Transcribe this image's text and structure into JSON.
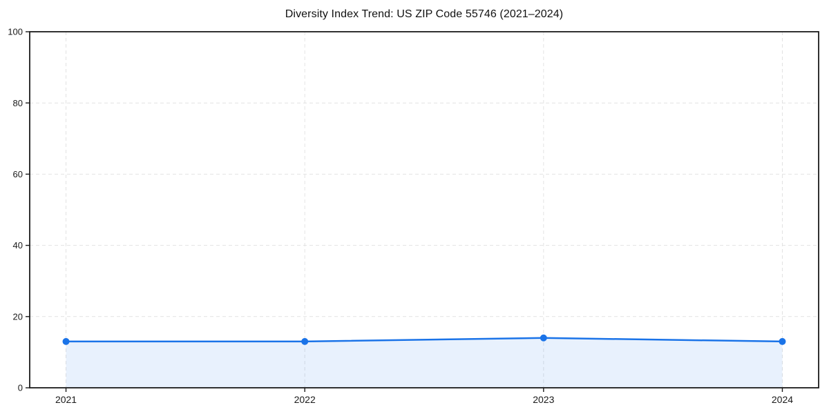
{
  "chart_data": {
    "type": "line",
    "title": "Diversity Index Trend: US ZIP Code 55746 (2021–2024)",
    "categories": [
      "2021",
      "2022",
      "2023",
      "2024"
    ],
    "series": [
      {
        "name": "Diversity Index",
        "values": [
          13,
          13,
          14,
          13
        ]
      }
    ],
    "xlabel": "",
    "ylabel": "",
    "ylim": [
      0,
      100
    ],
    "yticks": [
      0,
      20,
      40,
      60,
      80,
      100
    ],
    "grid": true,
    "grid_style": "dashed",
    "legend_position": "none",
    "area_fill": true,
    "colors": {
      "line": "#1a73e8",
      "fill": "rgba(26,115,232,0.10)",
      "grid": "#e2e2e2",
      "axis": "#1a1a1a",
      "tick_label": "#1a1a1a",
      "title": "#111111",
      "background": "#ffffff"
    }
  }
}
